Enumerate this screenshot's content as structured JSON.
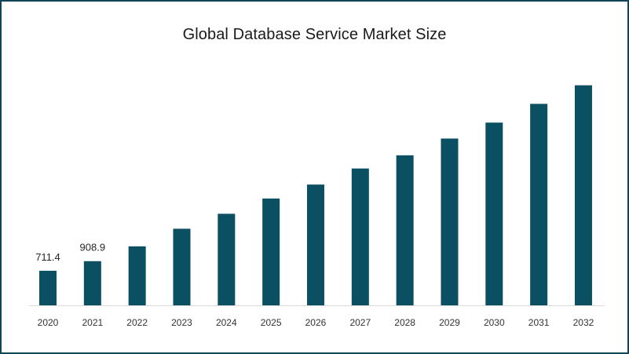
{
  "chart_data": {
    "type": "bar",
    "title": "Global Database Service Market Size",
    "xlabel": "",
    "ylabel": "",
    "categories": [
      "2020",
      "2021",
      "2022",
      "2023",
      "2024",
      "2025",
      "2026",
      "2027",
      "2028",
      "2029",
      "2030",
      "2031",
      "2032"
    ],
    "values": [
      711.4,
      908.9,
      1214,
      1576,
      1884,
      2198,
      2485,
      2816,
      3087,
      3432,
      3760,
      4146,
      4528
    ],
    "data_labels": [
      "711.4",
      "908.9",
      "",
      "",
      "",
      "",
      "",
      "",
      "",
      "",
      "",
      "",
      ""
    ],
    "ylim": [
      0,
      4700
    ],
    "bar_color": "#0b4f63",
    "axis_color": "#d9d9d9",
    "grid": false,
    "legend": "none"
  }
}
